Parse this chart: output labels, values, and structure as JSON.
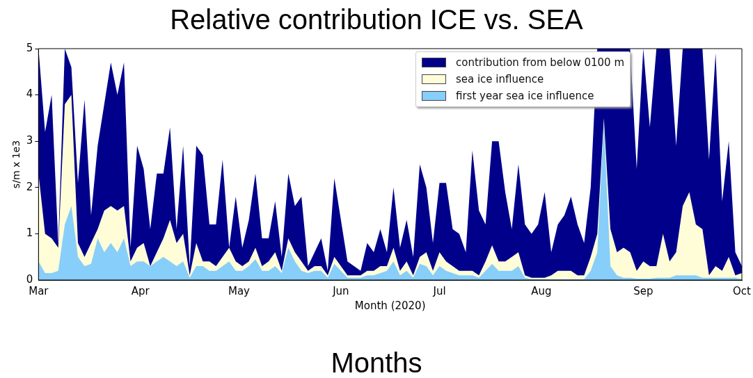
{
  "chart_data": {
    "type": "area",
    "title": "Relative contribution ICE vs. SEA",
    "xlabel": "Month (2020)",
    "ylabel": "s/m x 1e3",
    "annotations": [
      "Months"
    ],
    "x": [
      "2020-03-01",
      "2020-03-03",
      "2020-03-05",
      "2020-03-07",
      "2020-03-09",
      "2020-03-11",
      "2020-03-13",
      "2020-03-15",
      "2020-03-17",
      "2020-03-19",
      "2020-03-21",
      "2020-03-23",
      "2020-03-25",
      "2020-03-27",
      "2020-03-29",
      "2020-03-31",
      "2020-04-02",
      "2020-04-04",
      "2020-04-06",
      "2020-04-08",
      "2020-04-10",
      "2020-04-12",
      "2020-04-14",
      "2020-04-16",
      "2020-04-18",
      "2020-04-20",
      "2020-04-22",
      "2020-04-24",
      "2020-04-26",
      "2020-04-28",
      "2020-04-30",
      "2020-05-02",
      "2020-05-04",
      "2020-05-06",
      "2020-05-08",
      "2020-05-10",
      "2020-05-12",
      "2020-05-14",
      "2020-05-16",
      "2020-05-18",
      "2020-05-20",
      "2020-05-22",
      "2020-05-24",
      "2020-05-26",
      "2020-05-28",
      "2020-05-30",
      "2020-06-01",
      "2020-06-03",
      "2020-06-05",
      "2020-06-07",
      "2020-06-09",
      "2020-06-11",
      "2020-06-13",
      "2020-06-15",
      "2020-06-17",
      "2020-06-19",
      "2020-06-21",
      "2020-06-23",
      "2020-06-25",
      "2020-06-27",
      "2020-06-29",
      "2020-07-01",
      "2020-07-03",
      "2020-07-05",
      "2020-07-07",
      "2020-07-09",
      "2020-07-11",
      "2020-07-13",
      "2020-07-15",
      "2020-07-17",
      "2020-07-19",
      "2020-07-21",
      "2020-07-23",
      "2020-07-25",
      "2020-07-27",
      "2020-07-29",
      "2020-07-31",
      "2020-08-02",
      "2020-08-04",
      "2020-08-06",
      "2020-08-08",
      "2020-08-10",
      "2020-08-12",
      "2020-08-14",
      "2020-08-16",
      "2020-08-18",
      "2020-08-20",
      "2020-08-22",
      "2020-08-24",
      "2020-08-26",
      "2020-08-28",
      "2020-08-30",
      "2020-09-01",
      "2020-09-03",
      "2020-09-05",
      "2020-09-07",
      "2020-09-09",
      "2020-09-11",
      "2020-09-13",
      "2020-09-15",
      "2020-09-17",
      "2020-09-19",
      "2020-09-21",
      "2020-09-23",
      "2020-09-25",
      "2020-09-27",
      "2020-09-29",
      "2020-10-01"
    ],
    "series": [
      {
        "name": "contribution from below 0100 m",
        "color": "#00008b",
        "values": [
          5,
          3.2,
          4.0,
          0.8,
          5,
          4.6,
          2.1,
          3.9,
          1.4,
          2.9,
          3.8,
          4.7,
          4.0,
          4.7,
          0.7,
          2.9,
          2.4,
          1.1,
          2.3,
          2.3,
          3.3,
          1.1,
          2.9,
          0.3,
          2.9,
          2.7,
          1.2,
          1.2,
          2.6,
          0.7,
          1.8,
          0.7,
          1.3,
          2.3,
          0.9,
          0.9,
          1.7,
          0.5,
          2.3,
          1.6,
          1.8,
          0.3,
          0.6,
          0.9,
          0.2,
          2.2,
          1.3,
          0.4,
          0.3,
          0.2,
          0.8,
          0.6,
          1.1,
          0.6,
          2.0,
          0.7,
          1.3,
          0.5,
          2.5,
          2.0,
          0.8,
          2.1,
          2.1,
          1.1,
          1.0,
          0.6,
          2.8,
          1.5,
          1.2,
          3.0,
          3.0,
          1.9,
          1.1,
          2.5,
          1.2,
          1.0,
          1.2,
          1.9,
          0.6,
          1.2,
          1.4,
          1.8,
          1.2,
          0.8,
          2.0,
          5,
          5,
          5,
          5,
          5,
          5,
          2.4,
          5,
          3.3,
          5,
          5,
          5,
          2.9,
          5,
          5,
          5,
          5,
          2.6,
          4.9,
          1.7,
          3.0,
          0.6,
          0.3
        ]
      },
      {
        "name": "sea ice influence",
        "color": "#fffdd8",
        "values": [
          2.3,
          1.0,
          0.9,
          0.7,
          3.8,
          4.0,
          0.8,
          0.5,
          0.8,
          1.1,
          1.5,
          1.6,
          1.5,
          1.6,
          0.4,
          0.7,
          0.8,
          0.3,
          0.6,
          0.9,
          1.3,
          0.8,
          1.0,
          0.1,
          0.8,
          0.4,
          0.4,
          0.3,
          0.5,
          0.7,
          0.4,
          0.3,
          0.4,
          0.7,
          0.3,
          0.4,
          0.6,
          0.2,
          0.9,
          0.6,
          0.4,
          0.2,
          0.3,
          0.3,
          0.1,
          0.5,
          0.3,
          0.1,
          0.1,
          0.1,
          0.2,
          0.2,
          0.3,
          0.3,
          0.7,
          0.2,
          0.4,
          0.1,
          0.5,
          0.6,
          0.2,
          0.6,
          0.4,
          0.3,
          0.2,
          0.2,
          0.2,
          0.1,
          0.4,
          0.75,
          0.4,
          0.4,
          0.5,
          0.6,
          0.1,
          0.05,
          0.05,
          0.05,
          0.1,
          0.2,
          0.2,
          0.2,
          0.1,
          0.1,
          0.5,
          1.0,
          3.5,
          1.1,
          0.6,
          0.7,
          0.6,
          0.2,
          0.4,
          0.3,
          0.3,
          1.0,
          0.4,
          0.6,
          1.6,
          1.9,
          1.2,
          1.1,
          0.1,
          0.3,
          0.2,
          0.5,
          0.1,
          0.15
        ]
      },
      {
        "name": "first year sea ice influence",
        "color": "#87cefa",
        "values": [
          0.4,
          0.15,
          0.15,
          0.2,
          1.2,
          1.6,
          0.5,
          0.3,
          0.35,
          0.9,
          0.6,
          0.8,
          0.6,
          0.9,
          0.3,
          0.4,
          0.4,
          0.3,
          0.4,
          0.5,
          0.4,
          0.3,
          0.4,
          0.05,
          0.3,
          0.3,
          0.2,
          0.2,
          0.3,
          0.4,
          0.2,
          0.2,
          0.3,
          0.45,
          0.2,
          0.2,
          0.3,
          0.15,
          0.7,
          0.4,
          0.2,
          0.15,
          0.2,
          0.2,
          0.05,
          0.35,
          0.2,
          0.05,
          0.05,
          0.05,
          0.1,
          0.1,
          0.15,
          0.2,
          0.4,
          0.1,
          0.2,
          0.05,
          0.35,
          0.3,
          0.1,
          0.3,
          0.2,
          0.15,
          0.1,
          0.1,
          0.1,
          0.05,
          0.2,
          0.35,
          0.2,
          0.2,
          0.2,
          0.3,
          0.05,
          0.02,
          0.02,
          0.02,
          0.02,
          0.02,
          0.02,
          0.02,
          0.02,
          0.02,
          0.2,
          0.6,
          3.4,
          0.3,
          0.1,
          0.05,
          0.05,
          0.03,
          0.03,
          0.03,
          0.05,
          0.05,
          0.05,
          0.1,
          0.1,
          0.1,
          0.1,
          0.05,
          0.05,
          0.05,
          0.05,
          0.05,
          0.05,
          0.02
        ]
      }
    ],
    "xlim": [
      "2020-03-01",
      "2020-10-01"
    ],
    "xticks": [
      {
        "value": "2020-03-01",
        "label": "Mar"
      },
      {
        "value": "2020-04-01",
        "label": "Apr"
      },
      {
        "value": "2020-05-01",
        "label": "May"
      },
      {
        "value": "2020-06-01",
        "label": "Jun"
      },
      {
        "value": "2020-07-01",
        "label": "Jul"
      },
      {
        "value": "2020-08-01",
        "label": "Aug"
      },
      {
        "value": "2020-09-01",
        "label": "Sep"
      },
      {
        "value": "2020-10-01",
        "label": "Oct"
      }
    ],
    "ylim": [
      0,
      5
    ],
    "yticks": [
      0,
      1,
      2,
      3,
      4,
      5
    ],
    "grid": false,
    "legend": "top right"
  }
}
